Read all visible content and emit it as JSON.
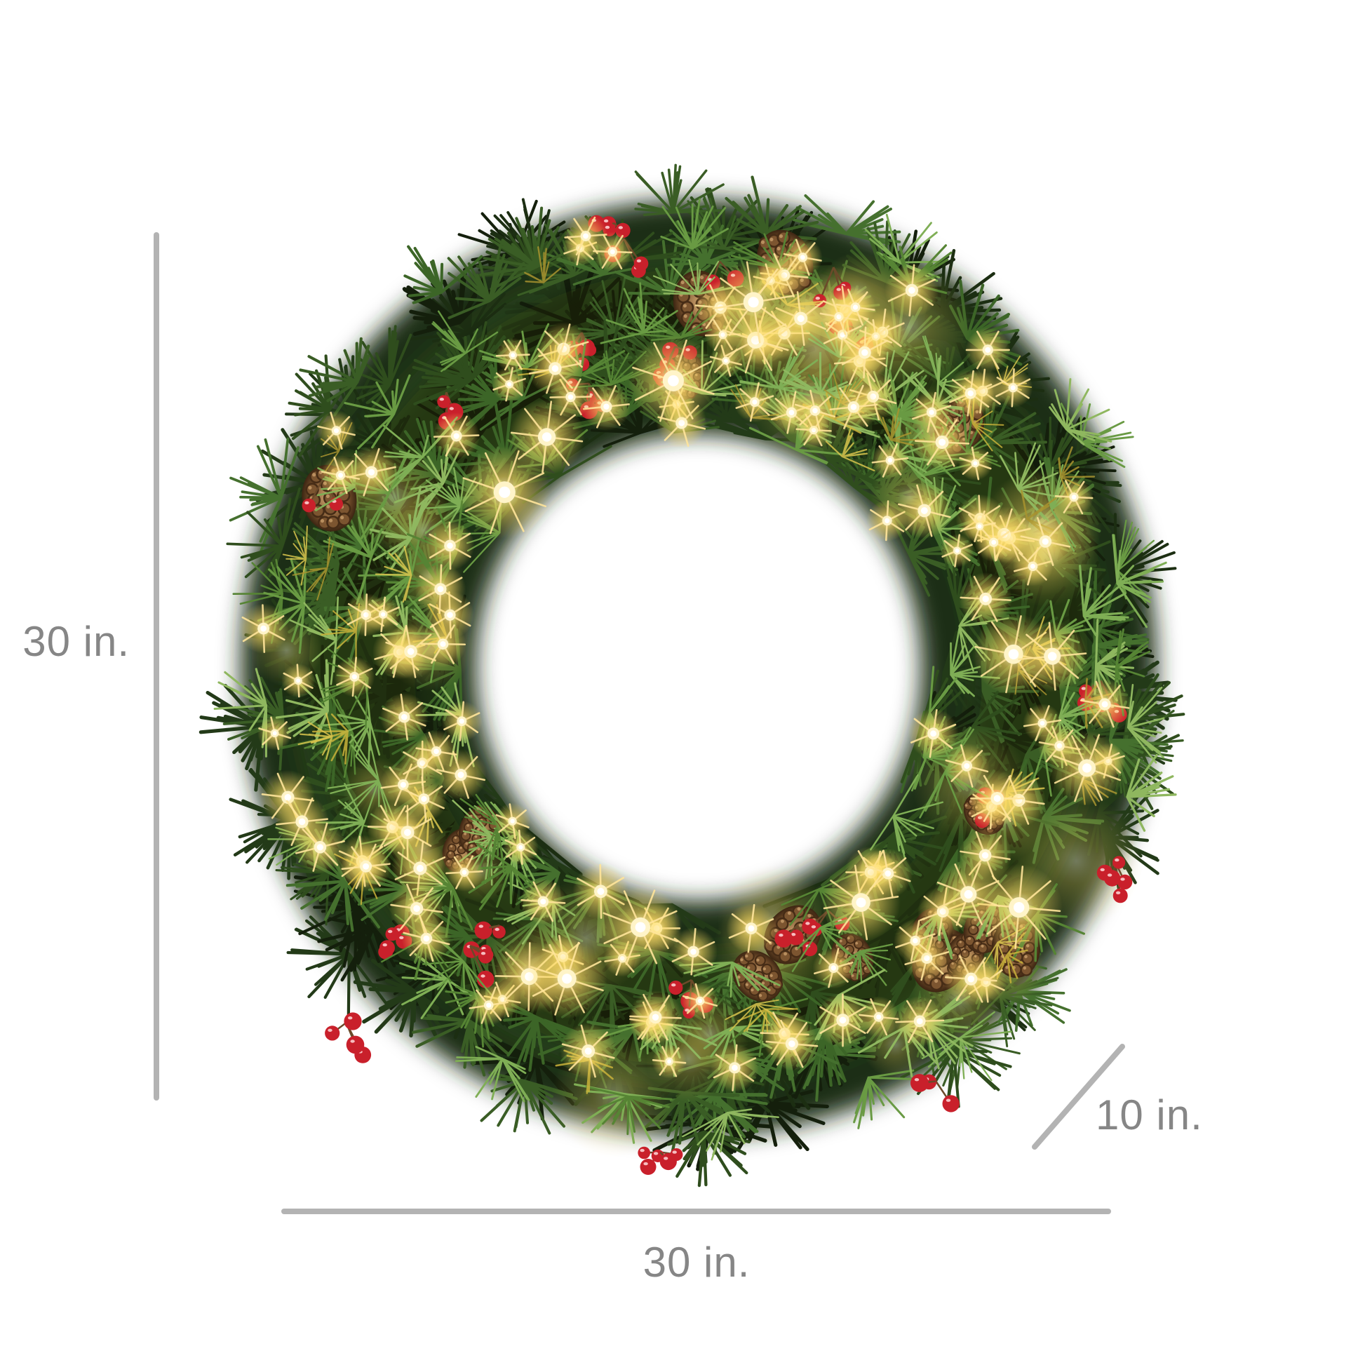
{
  "image": {
    "subject": "Pre-lit artificial Christmas wreath decorated with warm white lights, pinecones and red berry clusters, shown on white with product dimension lines",
    "background_color": "#ffffff"
  },
  "dimensions": {
    "height_label": "30 in.",
    "width_label": "30 in.",
    "depth_label": "10 in."
  },
  "style": {
    "dimension_line_color": "#b3b3b3",
    "label_color": "#868686"
  },
  "wreath": {
    "palette": {
      "foliage_dark": [
        "#141f0c",
        "#1c2e12",
        "#233a18"
      ],
      "foliage_mid": [
        "#2f4d1d",
        "#3a5d25",
        "#45702e",
        "#3c6527"
      ],
      "foliage_light": [
        "#568434",
        "#699a43",
        "#7fae55",
        "#8fb75f"
      ],
      "tinsel_gold": [
        "#c9b23a",
        "#a8932f",
        "#d8c44e"
      ],
      "light_glow": "#ffdd66",
      "light_halo": "#fff7d0",
      "light_ray": "#ffe49a",
      "light_core": "#ffffff",
      "light_inner": "#fff4c8",
      "berry": "#c9202b",
      "berry_highlight": "#ffd9d9",
      "stem_brown": "#6b4a2a",
      "pinecone_light": "#b98f5f",
      "pinecone_mid": "#7c5530",
      "pinecone_dark": "#462c16"
    }
  }
}
